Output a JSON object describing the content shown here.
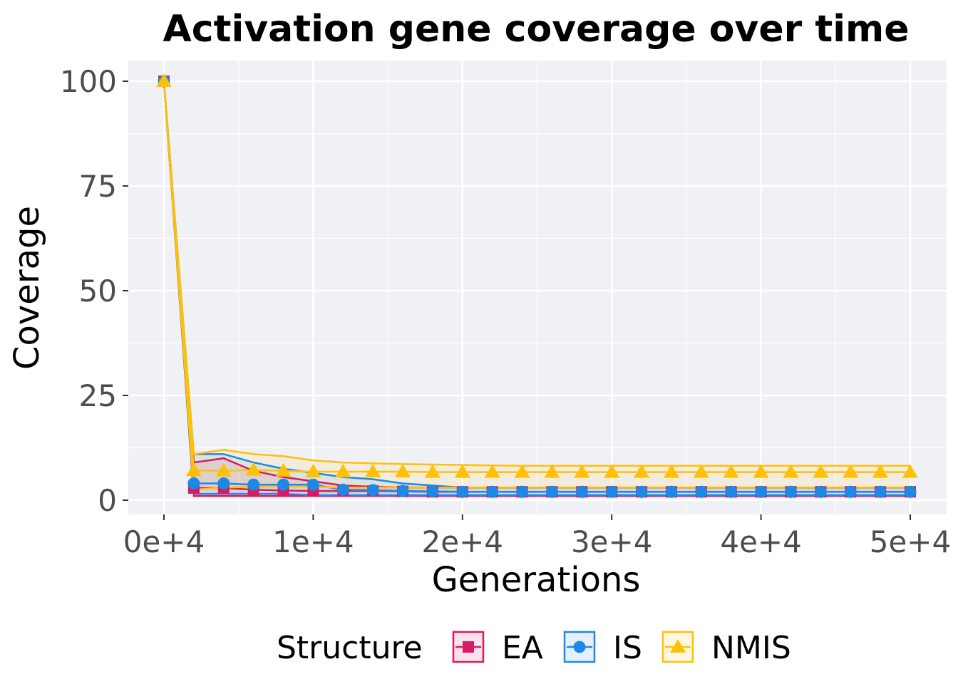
{
  "chart_data": {
    "type": "line",
    "title": "Activation gene coverage over time",
    "xlabel": "Generations",
    "ylabel": "Coverage",
    "xlim": [
      -2400,
      52400
    ],
    "ylim": [
      -3.5,
      105
    ],
    "x_ticks": [
      0,
      10000,
      20000,
      30000,
      40000,
      50000
    ],
    "x_tick_labels": [
      "0e+4",
      "1e+4",
      "2e+4",
      "3e+4",
      "4e+4",
      "5e+4"
    ],
    "y_ticks": [
      0,
      25,
      50,
      75,
      100
    ],
    "y_tick_labels": [
      "0",
      "25",
      "50",
      "75",
      "100"
    ],
    "grid": true,
    "legend": {
      "title": "Structure",
      "position": "bottom"
    },
    "x": [
      0,
      2000,
      4000,
      6000,
      8000,
      10000,
      12000,
      14000,
      16000,
      18000,
      20000,
      22000,
      24000,
      26000,
      28000,
      30000,
      32000,
      34000,
      36000,
      38000,
      40000,
      42000,
      44000,
      46000,
      48000,
      50000
    ],
    "series": [
      {
        "name": "EA",
        "color": "#D81B60",
        "marker": "square",
        "values": [
          100,
          2.9,
          2.9,
          2.5,
          2.3,
          2.2,
          2.2,
          2.2,
          2.1,
          2.0,
          2.0,
          2.0,
          2.0,
          2.0,
          2.0,
          2.0,
          2.0,
          2.0,
          2.0,
          2.0,
          2.0,
          2.0,
          2.0,
          2.0,
          2.0,
          2.0
        ],
        "upper": [
          100,
          9,
          10,
          7,
          5.5,
          4.5,
          3.5,
          3.2,
          3,
          3,
          3,
          3,
          3,
          3,
          3,
          3,
          3,
          3,
          3,
          3,
          3,
          3,
          3,
          3,
          3,
          3
        ],
        "lower": [
          100,
          1,
          1,
          1,
          1,
          1,
          1,
          1,
          1,
          1,
          1,
          1,
          1,
          1,
          1,
          1,
          1,
          1,
          1,
          1,
          1,
          1,
          1,
          1,
          1,
          1
        ]
      },
      {
        "name": "IS",
        "color": "#1E88E5",
        "marker": "circle",
        "values": [
          100,
          4,
          4,
          3.7,
          3.7,
          3.7,
          2.5,
          2.4,
          2.2,
          2.1,
          2.0,
          2.0,
          2.0,
          2.0,
          2.0,
          2.0,
          2.0,
          2.0,
          2.0,
          2.0,
          2.0,
          2.0,
          2.0,
          2.0,
          2.0,
          2.0
        ],
        "upper": [
          100,
          11,
          11,
          9,
          7.5,
          6.5,
          5.5,
          5,
          4,
          3.5,
          3,
          3,
          3,
          3,
          3,
          3,
          3,
          3,
          3,
          3,
          3,
          3,
          3,
          3,
          3,
          3
        ],
        "lower": [
          100,
          1.5,
          1.5,
          1.5,
          1.5,
          1.2,
          1.2,
          1.2,
          1.2,
          1.2,
          1.2,
          1.2,
          1.2,
          1.2,
          1.2,
          1.2,
          1.2,
          1.2,
          1.2,
          1.2,
          1.2,
          1.2,
          1.2,
          1.2,
          1.2,
          1.2
        ]
      },
      {
        "name": "NMIS",
        "color": "#FFC107",
        "marker": "triangle",
        "values": [
          100,
          7.1,
          7.0,
          7.2,
          7.0,
          6.8,
          6.8,
          6.8,
          6.8,
          6.7,
          6.7,
          6.7,
          6.7,
          6.7,
          6.7,
          6.7,
          6.7,
          6.7,
          6.7,
          6.7,
          6.7,
          6.7,
          6.7,
          6.7,
          6.7,
          6.7
        ],
        "upper": [
          100,
          11,
          12,
          11,
          10.5,
          9.5,
          9,
          8.8,
          8.6,
          8.5,
          8.4,
          8.3,
          8.2,
          8.2,
          8.2,
          8.2,
          8.2,
          8.2,
          8.2,
          8.2,
          8.2,
          8.2,
          8.2,
          8.2,
          8.2,
          8.2
        ],
        "lower": [
          100,
          2.5,
          3,
          3.2,
          3.2,
          3.2,
          3,
          3,
          3,
          3,
          3,
          3,
          3,
          3,
          3,
          3,
          3,
          3,
          3,
          3,
          3,
          3,
          3,
          3,
          3,
          3
        ]
      }
    ]
  }
}
